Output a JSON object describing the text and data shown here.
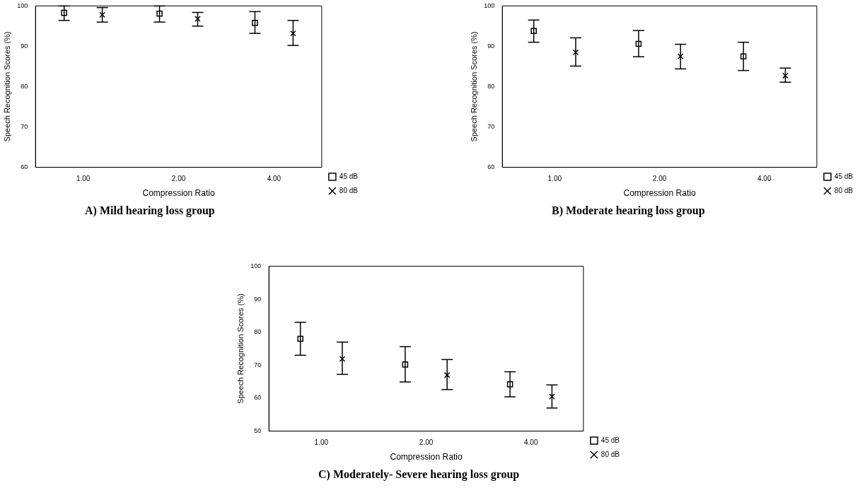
{
  "chart_data": [
    {
      "type": "scatter",
      "title": "A) Mild hearing loss group",
      "xlabel": "Compression Ratio",
      "ylabel": "Speech Recognition Scores (%)",
      "categories": [
        "1.00",
        "2.00",
        "4.00"
      ],
      "ylim": [
        60,
        100
      ],
      "yticks": [
        60,
        70,
        80,
        90,
        100
      ],
      "grid": false,
      "legend": "right",
      "series": [
        {
          "name": "45 dB",
          "color": "#000000",
          "marker": "square",
          "values": [
            98.3,
            98.1,
            95.8
          ],
          "errors": [
            [
              96.4,
              100
            ],
            [
              96.0,
              100
            ],
            [
              93.2,
              98.6
            ]
          ]
        },
        {
          "name": "80 dB",
          "color": "#000000",
          "marker": "cross",
          "values": [
            97.8,
            96.8,
            93.2
          ],
          "errors": [
            [
              96.0,
              99.6
            ],
            [
              95.0,
              98.4
            ],
            [
              90.2,
              96.4
            ]
          ]
        }
      ]
    },
    {
      "type": "scatter",
      "title": "B) Moderate hearing loss group",
      "xlabel": "Compression Ratio",
      "ylabel": "Speech Recognition Scores (%)",
      "categories": [
        "1.00",
        "2.00",
        "4.00"
      ],
      "ylim": [
        60,
        100
      ],
      "yticks": [
        60,
        70,
        80,
        90,
        100
      ],
      "grid": false,
      "legend": "right",
      "series": [
        {
          "name": "45 dB",
          "color": "#000000",
          "marker": "square",
          "values": [
            93.8,
            90.6,
            87.5
          ],
          "errors": [
            [
              91.0,
              96.5
            ],
            [
              87.4,
              93.9
            ],
            [
              84.0,
              91.0
            ]
          ]
        },
        {
          "name": "80 dB",
          "color": "#000000",
          "marker": "cross",
          "values": [
            88.5,
            87.5,
            82.7
          ],
          "errors": [
            [
              85.1,
              92.1
            ],
            [
              84.4,
              90.5
            ],
            [
              81.1,
              84.6
            ]
          ]
        }
      ]
    },
    {
      "type": "scatter",
      "title": "C) Moderately- Severe hearing loss group",
      "xlabel": "Compression Ratio",
      "ylabel": "Speech Recognition Scores (%)",
      "categories": [
        "1.00",
        "2.00",
        "4.00"
      ],
      "ylim": [
        50,
        100
      ],
      "yticks": [
        50,
        60,
        70,
        80,
        90,
        100
      ],
      "grid": false,
      "legend": "right",
      "series": [
        {
          "name": "45 dB",
          "color": "#000000",
          "marker": "square",
          "values": [
            78.0,
            70.2,
            64.2
          ],
          "errors": [
            [
              73.0,
              83.0
            ],
            [
              64.9,
              75.6
            ],
            [
              60.4,
              68.0
            ]
          ]
        },
        {
          "name": "80 dB",
          "color": "#000000",
          "marker": "cross",
          "values": [
            71.9,
            67.0,
            60.5
          ],
          "errors": [
            [
              67.2,
              77.0
            ],
            [
              62.6,
              71.7
            ],
            [
              57.0,
              64.0
            ]
          ]
        }
      ]
    }
  ]
}
